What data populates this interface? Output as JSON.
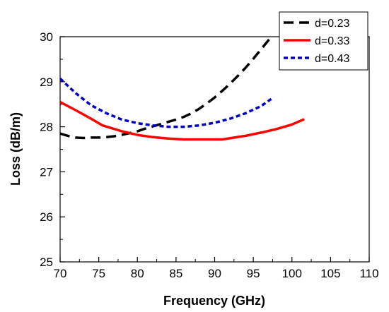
{
  "chart_data": {
    "type": "line",
    "xlabel": "Frequency (GHz)",
    "ylabel": "Loss (dB/m)",
    "xlim": [
      70,
      110
    ],
    "ylim": [
      25,
      30
    ],
    "xticks": [
      70,
      75,
      80,
      85,
      90,
      95,
      100,
      105,
      110
    ],
    "yticks": [
      25,
      26,
      27,
      28,
      29,
      30
    ],
    "grid": false,
    "legend_position": "top-right",
    "series": [
      {
        "name": "d=0.23",
        "color": "#000000",
        "dash": "dashed",
        "x": [
          70,
          71,
          72,
          73,
          74,
          75,
          76,
          77,
          78,
          79,
          80,
          81,
          82,
          83,
          84,
          85,
          86,
          87,
          88,
          89,
          90,
          91,
          92,
          93,
          94,
          95,
          96,
          97,
          97.6
        ],
        "y": [
          27.85,
          27.8,
          27.76,
          27.75,
          27.76,
          27.76,
          27.77,
          27.79,
          27.82,
          27.86,
          27.9,
          27.96,
          28.01,
          28.06,
          28.11,
          28.16,
          28.22,
          28.3,
          28.4,
          28.52,
          28.65,
          28.8,
          28.96,
          29.13,
          29.31,
          29.51,
          29.72,
          29.93,
          30.05
        ]
      },
      {
        "name": "d=0.33",
        "color": "#ff0000",
        "dash": "solid",
        "x": [
          70,
          72,
          74,
          75.5,
          78,
          80,
          82,
          84,
          86,
          88,
          90,
          91,
          94,
          96,
          98,
          100,
          101.6
        ],
        "y": [
          28.55,
          28.37,
          28.18,
          28.03,
          27.9,
          27.82,
          27.77,
          27.74,
          27.72,
          27.72,
          27.72,
          27.72,
          27.8,
          27.87,
          27.95,
          28.05,
          28.17
        ]
      },
      {
        "name": "d=0.43",
        "color": "#0000cc",
        "dash": "dotted",
        "x": [
          70,
          72,
          74,
          76,
          78,
          80,
          82,
          84,
          86,
          88,
          90,
          92,
          94,
          96,
          97.6
        ],
        "y": [
          29.07,
          28.75,
          28.48,
          28.3,
          28.16,
          28.08,
          28.03,
          28.0,
          28.0,
          28.03,
          28.09,
          28.18,
          28.3,
          28.46,
          28.65
        ]
      }
    ]
  }
}
